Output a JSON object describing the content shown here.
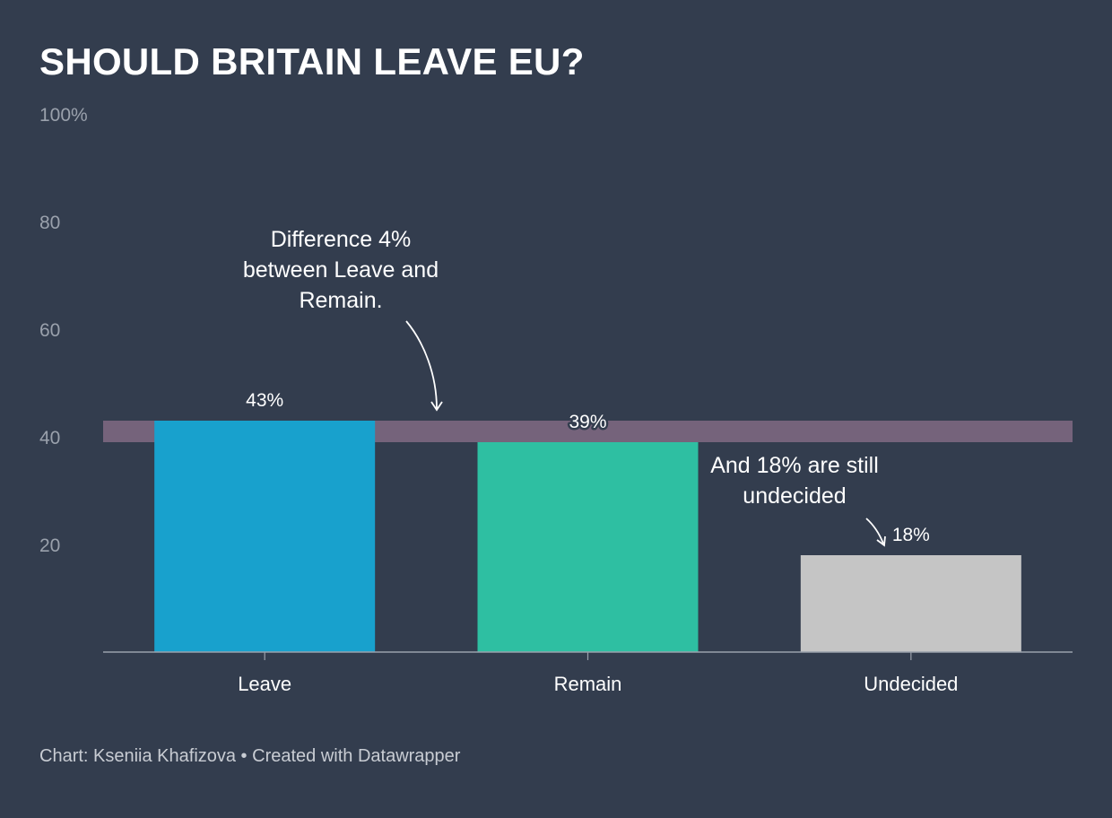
{
  "title": "SHOULD BRITAIN LEAVE EU?",
  "chart_data": {
    "type": "bar",
    "categories": [
      "Leave",
      "Remain",
      "Undecided"
    ],
    "values": [
      43,
      39,
      18
    ],
    "value_labels": [
      "43%",
      "39%",
      "18%"
    ],
    "colors": [
      "#18a1cd",
      "#2ebfa2",
      "#c5c5c5"
    ],
    "ylim": [
      0,
      100
    ],
    "yticks": [
      20,
      40,
      60,
      80,
      100
    ],
    "ytick_labels": [
      "20",
      "40",
      "60",
      "80",
      "100%"
    ],
    "highlight_band": {
      "from": 39,
      "to": 43,
      "color": "#75637b"
    },
    "grid": false,
    "xlabel": "",
    "ylabel": ""
  },
  "annotations": {
    "difference": [
      "Difference 4%",
      "between Leave and",
      "Remain."
    ],
    "undecided": [
      "And 18% are still",
      "undecided"
    ]
  },
  "footer": "Chart: Kseniia Khafizova • Created with Datawrapper"
}
